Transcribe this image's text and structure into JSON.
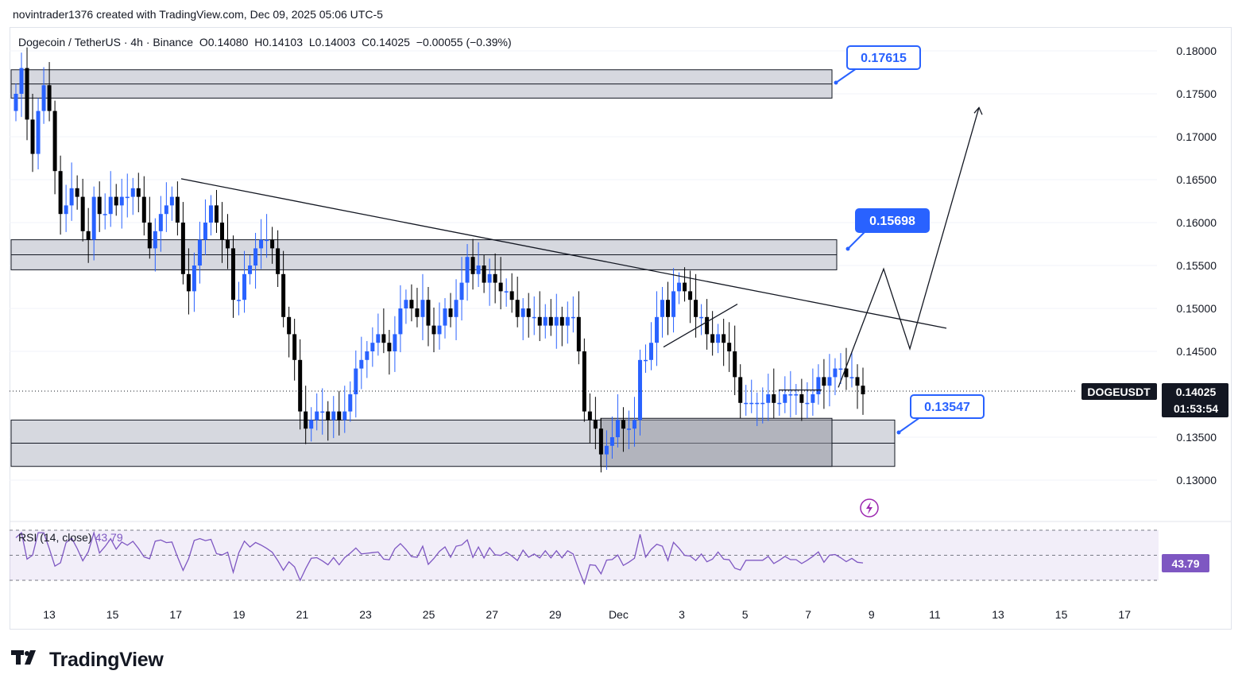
{
  "header": {
    "attribution": "novintrader1376 created with TradingView.com, Dec 09, 2025 05:06 UTC-5"
  },
  "legend": {
    "symbol": "Dogecoin / TetherUS · 4h · Binance",
    "open": "O0.14080",
    "high": "H0.14103",
    "low": "L0.14003",
    "close": "C0.14025",
    "change": "−0.00055 (−0.39%)"
  },
  "price_axis": {
    "ticks": [
      "0.18000",
      "0.17500",
      "0.17000",
      "0.16500",
      "0.16000",
      "0.15500",
      "0.15000",
      "0.14500",
      "0.13500",
      "0.13000"
    ],
    "symbol_label": "DOGEUSDT",
    "last_price": "0.14025",
    "countdown": "01:53:54"
  },
  "time_axis": {
    "ticks": [
      "13",
      "15",
      "17",
      "19",
      "21",
      "23",
      "25",
      "27",
      "29",
      "Dec",
      "3",
      "5",
      "7",
      "9",
      "11",
      "13",
      "15",
      "17"
    ]
  },
  "callouts": [
    {
      "label": "0.17615",
      "style": "outline"
    },
    {
      "label": "0.15698",
      "style": "filled"
    },
    {
      "label": "0.13547",
      "style": "outline"
    }
  ],
  "rsi": {
    "title": "RSI (14, close)",
    "value": "43.79"
  },
  "logo": {
    "text": "TradingView"
  },
  "colors": {
    "up": "#2962ff",
    "down": "#000000",
    "rsi": "#7e57c2",
    "zone": "#d1d4dc",
    "callout": "#2962ff"
  },
  "chart_data": {
    "type": "candlestick",
    "interval": "4h",
    "ylim": [
      0.1265,
      0.1822
    ],
    "y_ticks": [
      0.18,
      0.175,
      0.17,
      0.165,
      0.16,
      0.155,
      0.15,
      0.145,
      0.135,
      0.13
    ],
    "last_close": 0.14025,
    "zones": [
      {
        "from": 0.1745,
        "to": 0.1778
      },
      {
        "from": 0.1545,
        "to": 0.158
      },
      {
        "from": 0.1316,
        "to": 0.137
      }
    ],
    "callout_levels": [
      0.17615,
      0.15698,
      0.13547
    ],
    "rsi": {
      "value": 43.79,
      "levels": [
        70,
        50,
        30
      ]
    },
    "closes": [
      0.175,
      0.178,
      0.172,
      0.168,
      0.173,
      0.176,
      0.173,
      0.166,
      0.161,
      0.162,
      0.164,
      0.163,
      0.159,
      0.158,
      0.163,
      0.161,
      0.161,
      0.163,
      0.162,
      0.163,
      0.163,
      0.164,
      0.163,
      0.16,
      0.157,
      0.159,
      0.161,
      0.162,
      0.163,
      0.16,
      0.154,
      0.152,
      0.155,
      0.158,
      0.16,
      0.162,
      0.16,
      0.158,
      0.157,
      0.151,
      0.151,
      0.154,
      0.155,
      0.157,
      0.158,
      0.158,
      0.157,
      0.154,
      0.149,
      0.147,
      0.144,
      0.138,
      0.136,
      0.137,
      0.138,
      0.138,
      0.137,
      0.138,
      0.137,
      0.138,
      0.14,
      0.143,
      0.144,
      0.145,
      0.146,
      0.147,
      0.146,
      0.145,
      0.147,
      0.15,
      0.151,
      0.15,
      0.149,
      0.151,
      0.148,
      0.147,
      0.148,
      0.15,
      0.149,
      0.151,
      0.153,
      0.156,
      0.154,
      0.155,
      0.153,
      0.154,
      0.153,
      0.152,
      0.152,
      0.151,
      0.149,
      0.15,
      0.149,
      0.149,
      0.148,
      0.149,
      0.148,
      0.149,
      0.148,
      0.149,
      0.149,
      0.145,
      0.138,
      0.137,
      0.136,
      0.133,
      0.134,
      0.135,
      0.137,
      0.136,
      0.136,
      0.137,
      0.144,
      0.144,
      0.146,
      0.149,
      0.151,
      0.149,
      0.152,
      0.153,
      0.152,
      0.151,
      0.149,
      0.149,
      0.147,
      0.146,
      0.147,
      0.146,
      0.145,
      0.142,
      0.139,
      0.139,
      0.139,
      0.139,
      0.139,
      0.14,
      0.139,
      0.139,
      0.14,
      0.14,
      0.14,
      0.139,
      0.139,
      0.14,
      0.142,
      0.141,
      0.142,
      0.143,
      0.143,
      0.142,
      0.142,
      0.141,
      0.14
    ],
    "annotations": {
      "trendline": [
        [
          0.1651,
          0
        ],
        [
          0.1477,
          1
        ]
      ],
      "projection": [
        0.1408,
        0.1546,
        0.1453,
        0.1734
      ]
    }
  }
}
